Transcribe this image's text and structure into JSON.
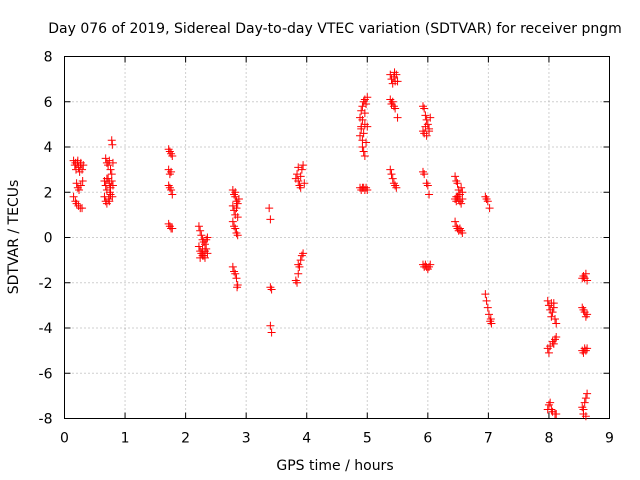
{
  "chart_data": {
    "type": "scatter",
    "title": "Day 076 of 2019, Sidereal Day-to-day VTEC variation (SDTVAR) for receiver pngm",
    "xlabel": "GPS time / hours",
    "ylabel": "SDTVAR / TECUs",
    "xlim": [
      0,
      9
    ],
    "ylim": [
      -8,
      8
    ],
    "xticks": [
      0,
      1,
      2,
      3,
      4,
      5,
      6,
      7,
      8,
      9
    ],
    "yticks": [
      -8,
      -6,
      -4,
      -2,
      0,
      2,
      4,
      6,
      8
    ],
    "xtick_labels": [
      "0",
      "1",
      "2",
      "3",
      "4",
      "5",
      "6",
      "7",
      "8",
      "9"
    ],
    "ytick_labels": [
      "-8",
      "-6",
      "-4",
      "-2",
      "0",
      "2",
      "4",
      "6",
      "8"
    ],
    "grid": true,
    "marker": "+",
    "marker_color": "#ff0000",
    "series": [
      {
        "name": "SDTVAR",
        "points": [
          [
            0.15,
            3.4
          ],
          [
            0.17,
            3.2
          ],
          [
            0.19,
            3.0
          ],
          [
            0.21,
            3.3
          ],
          [
            0.23,
            3.1
          ],
          [
            0.25,
            2.9
          ],
          [
            0.27,
            3.3
          ],
          [
            0.29,
            3.0
          ],
          [
            0.31,
            3.2
          ],
          [
            0.18,
            3.3
          ],
          [
            0.22,
            3.4
          ],
          [
            0.26,
            3.2
          ],
          [
            0.2,
            2.4
          ],
          [
            0.22,
            2.2
          ],
          [
            0.24,
            2.1
          ],
          [
            0.27,
            2.3
          ],
          [
            0.3,
            2.5
          ],
          [
            0.15,
            1.8
          ],
          [
            0.18,
            1.6
          ],
          [
            0.2,
            1.5
          ],
          [
            0.23,
            1.4
          ],
          [
            0.26,
            1.3
          ],
          [
            0.29,
            1.3
          ],
          [
            0.68,
            3.5
          ],
          [
            0.7,
            3.3
          ],
          [
            0.72,
            3.2
          ],
          [
            0.74,
            3.4
          ],
          [
            0.76,
            3.0
          ],
          [
            0.78,
            2.8
          ],
          [
            0.8,
            3.3
          ],
          [
            0.66,
            2.5
          ],
          [
            0.68,
            2.3
          ],
          [
            0.7,
            2.1
          ],
          [
            0.72,
            2.6
          ],
          [
            0.74,
            2.4
          ],
          [
            0.76,
            2.2
          ],
          [
            0.78,
            2.5
          ],
          [
            0.8,
            2.3
          ],
          [
            0.7,
            2.6
          ],
          [
            0.75,
            2.0
          ],
          [
            0.66,
            1.8
          ],
          [
            0.68,
            1.6
          ],
          [
            0.7,
            1.5
          ],
          [
            0.73,
            1.7
          ],
          [
            0.76,
            1.9
          ],
          [
            0.79,
            1.8
          ],
          [
            0.74,
            1.6
          ],
          [
            0.78,
            4.3
          ],
          [
            0.79,
            4.1
          ],
          [
            1.72,
            3.9
          ],
          [
            1.74,
            3.8
          ],
          [
            1.76,
            3.7
          ],
          [
            1.78,
            3.6
          ],
          [
            1.72,
            3.0
          ],
          [
            1.74,
            2.8
          ],
          [
            1.76,
            2.9
          ],
          [
            1.72,
            2.3
          ],
          [
            1.74,
            2.2
          ],
          [
            1.76,
            2.1
          ],
          [
            1.78,
            1.9
          ],
          [
            1.72,
            0.6
          ],
          [
            1.74,
            0.5
          ],
          [
            1.76,
            0.4
          ],
          [
            1.78,
            0.4
          ],
          [
            2.22,
            0.5
          ],
          [
            2.24,
            0.3
          ],
          [
            2.26,
            0.1
          ],
          [
            2.28,
            -0.1
          ],
          [
            2.3,
            -0.2
          ],
          [
            2.32,
            -0.3
          ],
          [
            2.34,
            -0.1
          ],
          [
            2.36,
            0.0
          ],
          [
            2.22,
            -0.4
          ],
          [
            2.24,
            -0.6
          ],
          [
            2.26,
            -0.7
          ],
          [
            2.28,
            -0.5
          ],
          [
            2.3,
            -0.8
          ],
          [
            2.32,
            -0.6
          ],
          [
            2.34,
            -0.5
          ],
          [
            2.36,
            -0.7
          ],
          [
            2.24,
            -0.9
          ],
          [
            2.28,
            -0.8
          ],
          [
            2.32,
            -0.9
          ],
          [
            2.78,
            2.1
          ],
          [
            2.8,
            1.9
          ],
          [
            2.82,
            1.8
          ],
          [
            2.84,
            1.6
          ],
          [
            2.86,
            1.5
          ],
          [
            2.88,
            1.7
          ],
          [
            2.82,
            2.0
          ],
          [
            2.78,
            1.4
          ],
          [
            2.8,
            1.2
          ],
          [
            2.82,
            1.0
          ],
          [
            2.84,
            1.3
          ],
          [
            2.86,
            0.9
          ],
          [
            2.78,
            0.7
          ],
          [
            2.8,
            0.5
          ],
          [
            2.82,
            0.4
          ],
          [
            2.84,
            0.2
          ],
          [
            2.86,
            0.1
          ],
          [
            2.78,
            -1.3
          ],
          [
            2.8,
            -1.5
          ],
          [
            2.82,
            -1.6
          ],
          [
            2.84,
            -1.8
          ],
          [
            2.86,
            -2.1
          ],
          [
            2.85,
            -2.2
          ],
          [
            3.38,
            1.3
          ],
          [
            3.4,
            0.8
          ],
          [
            3.4,
            -2.2
          ],
          [
            3.42,
            -2.3
          ],
          [
            3.4,
            -3.9
          ],
          [
            3.42,
            -4.2
          ],
          [
            3.82,
            2.6
          ],
          [
            3.84,
            2.8
          ],
          [
            3.86,
            2.5
          ],
          [
            3.88,
            2.3
          ],
          [
            3.9,
            2.7
          ],
          [
            3.92,
            3.0
          ],
          [
            3.94,
            3.2
          ],
          [
            3.96,
            2.4
          ],
          [
            3.86,
            3.1
          ],
          [
            3.9,
            2.2
          ],
          [
            3.82,
            -1.9
          ],
          [
            3.84,
            -2.0
          ],
          [
            3.86,
            -1.6
          ],
          [
            3.88,
            -1.3
          ],
          [
            3.9,
            -1.0
          ],
          [
            3.92,
            -0.8
          ],
          [
            3.94,
            -0.7
          ],
          [
            3.86,
            -1.2
          ],
          [
            4.88,
            5.3
          ],
          [
            4.9,
            5.6
          ],
          [
            4.92,
            5.8
          ],
          [
            4.94,
            6.0
          ],
          [
            4.96,
            5.5
          ],
          [
            4.98,
            5.9
          ],
          [
            5.0,
            6.2
          ],
          [
            4.92,
            5.2
          ],
          [
            4.96,
            6.1
          ],
          [
            4.88,
            4.5
          ],
          [
            4.9,
            4.8
          ],
          [
            4.92,
            4.3
          ],
          [
            4.94,
            4.6
          ],
          [
            4.96,
            5.0
          ],
          [
            4.98,
            4.2
          ],
          [
            5.0,
            4.9
          ],
          [
            4.9,
            4.9
          ],
          [
            4.92,
            4.0
          ],
          [
            4.94,
            3.8
          ],
          [
            4.96,
            3.6
          ],
          [
            4.88,
            2.2
          ],
          [
            4.9,
            2.1
          ],
          [
            4.92,
            2.2
          ],
          [
            4.94,
            2.2
          ],
          [
            4.96,
            2.1
          ],
          [
            4.98,
            2.2
          ],
          [
            5.0,
            2.1
          ],
          [
            5.38,
            7.2
          ],
          [
            5.4,
            7.0
          ],
          [
            5.42,
            6.8
          ],
          [
            5.44,
            7.1
          ],
          [
            5.46,
            6.9
          ],
          [
            5.48,
            7.2
          ],
          [
            5.5,
            6.9
          ],
          [
            5.45,
            7.3
          ],
          [
            5.38,
            6.1
          ],
          [
            5.4,
            5.9
          ],
          [
            5.42,
            6.0
          ],
          [
            5.44,
            5.8
          ],
          [
            5.46,
            5.7
          ],
          [
            5.5,
            5.3
          ],
          [
            5.38,
            3.0
          ],
          [
            5.4,
            2.8
          ],
          [
            5.42,
            2.6
          ],
          [
            5.44,
            2.4
          ],
          [
            5.46,
            2.3
          ],
          [
            5.48,
            2.2
          ],
          [
            5.92,
            5.8
          ],
          [
            5.94,
            5.7
          ],
          [
            5.96,
            5.4
          ],
          [
            5.98,
            5.2
          ],
          [
            6.0,
            5.0
          ],
          [
            6.02,
            4.8
          ],
          [
            6.04,
            5.3
          ],
          [
            5.96,
            4.9
          ],
          [
            5.92,
            4.7
          ],
          [
            5.94,
            4.6
          ],
          [
            5.98,
            4.5
          ],
          [
            6.02,
            4.7
          ],
          [
            5.92,
            2.9
          ],
          [
            5.94,
            2.8
          ],
          [
            5.98,
            2.4
          ],
          [
            6.0,
            2.3
          ],
          [
            6.02,
            1.9
          ],
          [
            5.92,
            -1.2
          ],
          [
            5.94,
            -1.3
          ],
          [
            5.96,
            -1.2
          ],
          [
            5.98,
            -1.3
          ],
          [
            6.0,
            -1.4
          ],
          [
            6.02,
            -1.3
          ],
          [
            6.04,
            -1.2
          ],
          [
            6.45,
            2.7
          ],
          [
            6.47,
            2.5
          ],
          [
            6.49,
            2.4
          ],
          [
            6.51,
            2.1
          ],
          [
            6.53,
            1.9
          ],
          [
            6.55,
            2.2
          ],
          [
            6.57,
            2.0
          ],
          [
            6.47,
            1.8
          ],
          [
            6.45,
            1.7
          ],
          [
            6.47,
            1.6
          ],
          [
            6.49,
            1.8
          ],
          [
            6.51,
            1.7
          ],
          [
            6.53,
            1.6
          ],
          [
            6.55,
            1.5
          ],
          [
            6.57,
            1.7
          ],
          [
            6.45,
            0.7
          ],
          [
            6.47,
            0.5
          ],
          [
            6.49,
            0.4
          ],
          [
            6.51,
            0.3
          ],
          [
            6.53,
            0.4
          ],
          [
            6.55,
            0.3
          ],
          [
            6.57,
            0.2
          ],
          [
            6.95,
            1.8
          ],
          [
            6.97,
            1.7
          ],
          [
            6.99,
            1.6
          ],
          [
            7.02,
            1.3
          ],
          [
            6.95,
            -2.5
          ],
          [
            6.97,
            -2.8
          ],
          [
            6.99,
            -3.1
          ],
          [
            7.01,
            -3.4
          ],
          [
            7.03,
            -3.7
          ],
          [
            7.05,
            -3.8
          ],
          [
            7.04,
            -3.6
          ],
          [
            7.98,
            -2.8
          ],
          [
            8.0,
            -3.0
          ],
          [
            8.02,
            -3.2
          ],
          [
            8.04,
            -3.5
          ],
          [
            8.06,
            -3.3
          ],
          [
            8.08,
            -3.1
          ],
          [
            8.1,
            -3.6
          ],
          [
            8.12,
            -3.8
          ],
          [
            8.04,
            -2.9
          ],
          [
            8.08,
            -2.9
          ],
          [
            7.98,
            -4.9
          ],
          [
            8.0,
            -5.1
          ],
          [
            8.02,
            -4.8
          ],
          [
            8.06,
            -4.6
          ],
          [
            8.08,
            -4.7
          ],
          [
            8.1,
            -4.5
          ],
          [
            8.12,
            -4.4
          ],
          [
            7.98,
            -7.6
          ],
          [
            8.0,
            -7.4
          ],
          [
            8.02,
            -7.3
          ],
          [
            8.04,
            -7.6
          ],
          [
            8.06,
            -7.7
          ],
          [
            8.1,
            -7.8
          ],
          [
            8.12,
            -7.8
          ],
          [
            8.55,
            -1.8
          ],
          [
            8.57,
            -1.7
          ],
          [
            8.59,
            -1.8
          ],
          [
            8.61,
            -1.6
          ],
          [
            8.63,
            -1.9
          ],
          [
            8.55,
            -3.1
          ],
          [
            8.57,
            -3.2
          ],
          [
            8.59,
            -3.3
          ],
          [
            8.61,
            -3.5
          ],
          [
            8.63,
            -3.4
          ],
          [
            8.55,
            -5.0
          ],
          [
            8.57,
            -5.1
          ],
          [
            8.59,
            -4.9
          ],
          [
            8.61,
            -5.0
          ],
          [
            8.63,
            -4.9
          ],
          [
            8.55,
            -7.5
          ],
          [
            8.57,
            -7.6
          ],
          [
            8.59,
            -7.3
          ],
          [
            8.61,
            -7.1
          ],
          [
            8.63,
            -6.9
          ],
          [
            8.57,
            -7.8
          ],
          [
            8.61,
            -7.9
          ]
        ]
      }
    ]
  }
}
